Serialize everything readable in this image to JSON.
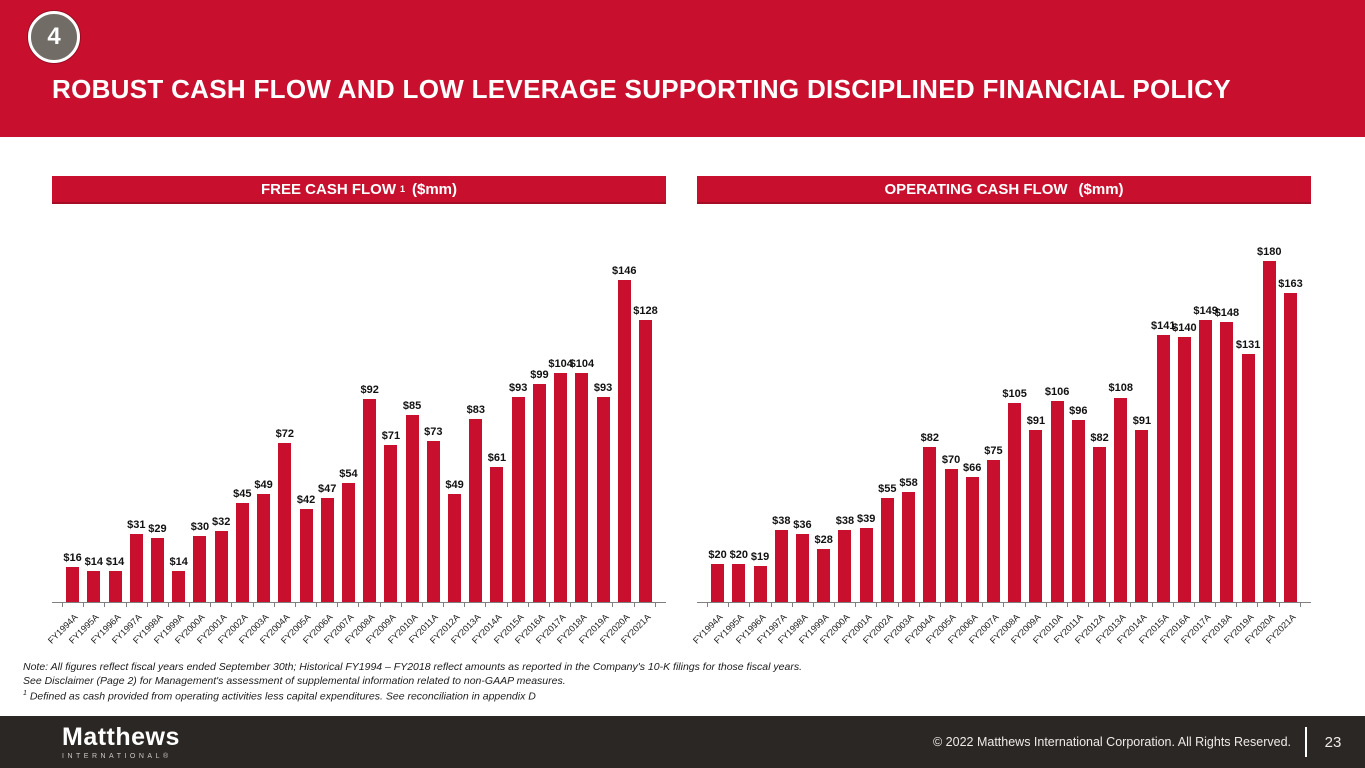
{
  "slide": {
    "badge": "4",
    "title": "ROBUST CASH FLOW AND LOW LEVERAGE SUPPORTING DISCIPLINED FINANCIAL POLICY",
    "colors": {
      "brand_red": "#C8102E",
      "footer_bg": "#2B2724",
      "badge_gray": "#716C66",
      "axis_gray": "#7f7f7f"
    },
    "footnotes": {
      "line1": "Note: All figures reflect fiscal years ended September 30th; Historical FY1994 – FY2018 reflect amounts as reported in the Company's 10-K filings for those fiscal years.",
      "line2": "See Disclaimer (Page 2) for Management's assessment of supplemental information related to non-GAAP measures.",
      "line3_sup": "1",
      "line3": "Defined as cash provided from operating activities less capital expenditures. See reconciliation in appendix D"
    },
    "footer": {
      "logo_primary": "Matthews",
      "logo_secondary": "INTERNATIONAL®",
      "copyright": "© 2022 Matthews International Corporation. All Rights Reserved.",
      "page_number": "23"
    }
  },
  "chart_data": [
    {
      "type": "bar",
      "title_parts": {
        "main": "FREE CASH FLOW",
        "sup": "1",
        "unit": "($mm)"
      },
      "title": "FREE CASH FLOW 1 ($mm)",
      "categories": [
        "FY1994A",
        "FY1995A",
        "FY1996A",
        "FY1997A",
        "FY1998A",
        "FY1999A",
        "FY2000A",
        "FY2001A",
        "FY2002A",
        "FY2003A",
        "FY2004A",
        "FY2005A",
        "FY2006A",
        "FY2007A",
        "FY2008A",
        "FY2009A",
        "FY2010A",
        "FY2011A",
        "FY2012A",
        "FY2013A",
        "FY2014A",
        "FY2015A",
        "FY2016A",
        "FY2017A",
        "FY2018A",
        "FY2019A",
        "FY2020A",
        "FY2021A"
      ],
      "values": [
        16,
        14,
        14,
        31,
        29,
        14,
        30,
        32,
        45,
        49,
        72,
        42,
        47,
        54,
        92,
        71,
        85,
        73,
        49,
        83,
        61,
        93,
        99,
        104,
        104,
        93,
        146,
        128
      ],
      "value_prefix": "$",
      "ylabel": "",
      "xlabel": "",
      "ylim": [
        0,
        170
      ],
      "grid": false,
      "legend": "none",
      "bar_color": "#C8102E"
    },
    {
      "type": "bar",
      "title_parts": {
        "main": "OPERATING CASH FLOW",
        "sup": "",
        "unit": "($mm)"
      },
      "title": "OPERATING CASH FLOW ($mm)",
      "categories": [
        "FY1994A",
        "FY1995A",
        "FY1996A",
        "FY1997A",
        "FY1998A",
        "FY1999A",
        "FY2000A",
        "FY2001A",
        "FY2002A",
        "FY2003A",
        "FY2004A",
        "FY2005A",
        "FY2006A",
        "FY2007A",
        "FY2008A",
        "FY2009A",
        "FY2010A",
        "FY2011A",
        "FY2012A",
        "FY2013A",
        "FY2014A",
        "FY2015A",
        "FY2016A",
        "FY2017A",
        "FY2018A",
        "FY2019A",
        "FY2020A",
        "FY2021A"
      ],
      "values": [
        20,
        20,
        19,
        38,
        36,
        28,
        38,
        39,
        55,
        58,
        82,
        70,
        66,
        75,
        105,
        91,
        106,
        96,
        82,
        108,
        91,
        141,
        140,
        149,
        148,
        131,
        180,
        163
      ],
      "value_prefix": "$",
      "ylabel": "",
      "xlabel": "",
      "ylim": [
        0,
        198
      ],
      "grid": false,
      "legend": "none",
      "bar_color": "#C8102E"
    }
  ]
}
